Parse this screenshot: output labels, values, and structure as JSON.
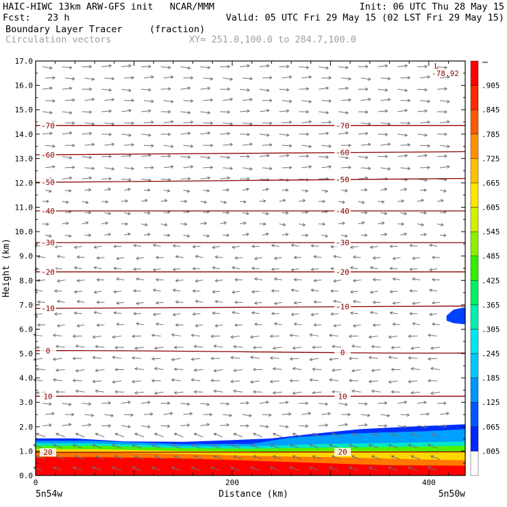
{
  "header": {
    "line1_left": "HAIC-HIWC 13km ARW-GFS init   NCAR/MMM",
    "line1_right": "Init: 06 UTC Thu 28 May 15",
    "line2_left": "Fcst:   23 h",
    "line2_right": "Valid: 05 UTC Fri 29 May 15 (02 LST Fri 29 May 15)",
    "field_name": "Boundary Layer Tracer",
    "field_units": "(fraction)",
    "vector_name": "Circulation vectors",
    "xy_text": "XY= 251.0,100.0 to 284.7,100.0"
  },
  "chart_data": {
    "type": "heatmap",
    "title": "Boundary Layer Tracer",
    "units": "fraction",
    "xlabel": "Distance (km)",
    "ylabel": "Height (km)",
    "xlim": [
      0,
      437
    ],
    "ylim": [
      0,
      17
    ],
    "x_ticks": [
      "0",
      "200",
      "400"
    ],
    "x_tick_values": [
      0,
      200,
      400
    ],
    "x_end_labels": [
      "5n54w",
      "5n50w"
    ],
    "y_ticks": [
      "0.0",
      "1.0",
      "2.0",
      "3.0",
      "4.0",
      "5.0",
      "6.0",
      "7.0",
      "8.0",
      "9.0",
      "10.0",
      "11.0",
      "12.0",
      "13.0",
      "14.0",
      "15.0",
      "16.0",
      "17.0"
    ],
    "y_tick_values": [
      0,
      1,
      2,
      3,
      4,
      5,
      6,
      7,
      8,
      9,
      10,
      11,
      12,
      13,
      14,
      15,
      16,
      17
    ],
    "colorbar": {
      "labels": [
        ".005",
        ".065",
        ".125",
        ".185",
        ".245",
        ".305",
        ".365",
        ".425",
        ".485",
        ".545",
        ".605",
        ".665",
        ".725",
        ".785",
        ".845",
        ".905"
      ],
      "colors": [
        "#ffffff",
        "#0026ff",
        "#0057ff",
        "#0095ff",
        "#00c7ff",
        "#00e6f0",
        "#00f0b0",
        "#00f060",
        "#2ef000",
        "#8cf000",
        "#d4f000",
        "#ffe600",
        "#ffc000",
        "#ff9000",
        "#ff5a00",
        "#ff2a00",
        "#ff0000"
      ]
    },
    "tracer_regions": [
      {
        "name": "bl-red",
        "value": 0.95,
        "color": "#ff0000",
        "x": [
          0,
          60,
          150,
          210,
          260,
          310,
          360,
          437
        ],
        "top": [
          0.75,
          0.75,
          0.7,
          0.62,
          0.55,
          0.48,
          0.42,
          0.4
        ]
      },
      {
        "name": "bl-orange",
        "value": 0.8,
        "color": "#ff7800",
        "x": [
          0,
          60,
          150,
          220,
          300,
          370,
          437
        ],
        "top": [
          0.95,
          0.95,
          0.88,
          0.8,
          0.75,
          0.68,
          0.62
        ]
      },
      {
        "name": "bl-yellow",
        "value": 0.65,
        "color": "#ffd700",
        "x": [
          0,
          60,
          150,
          230,
          300,
          380,
          437
        ],
        "top": [
          1.08,
          1.08,
          1.0,
          0.98,
          1.0,
          1.0,
          0.95
        ]
      },
      {
        "name": "bl-green",
        "value": 0.4,
        "color": "#50f000",
        "x": [
          0,
          60,
          150,
          220,
          300,
          380,
          437
        ],
        "top": [
          1.22,
          1.22,
          1.12,
          1.1,
          1.15,
          1.18,
          1.22
        ]
      },
      {
        "name": "bl-cyan",
        "value": 0.3,
        "color": "#00e6c8",
        "x": [
          0,
          60,
          150,
          220,
          300,
          380,
          437
        ],
        "top": [
          1.32,
          1.32,
          1.2,
          1.2,
          1.3,
          1.35,
          1.4
        ]
      },
      {
        "name": "bl-lightblue",
        "value": 0.2,
        "color": "#00a0ff",
        "x": [
          0,
          60,
          150,
          220,
          260,
          320,
          400,
          437
        ],
        "top": [
          1.42,
          1.42,
          1.28,
          1.3,
          1.55,
          1.72,
          1.82,
          1.9
        ]
      },
      {
        "name": "bl-blue",
        "value": 0.06,
        "color": "#0030ff",
        "x": [
          0,
          40,
          90,
          150,
          200,
          240,
          280,
          330,
          380,
          437
        ],
        "top": [
          1.52,
          1.52,
          1.4,
          1.38,
          1.45,
          1.52,
          1.7,
          1.9,
          2.0,
          2.1
        ]
      },
      {
        "name": "aloft-patch",
        "value": 0.08,
        "color": "#0040ff",
        "x": [
          418,
          425,
          437
        ],
        "top": [
          6.55,
          6.8,
          6.9
        ],
        "bottom": [
          6.35,
          6.25,
          6.2
        ]
      }
    ],
    "contours": {
      "series_name": "Temperature",
      "color": "#8b0000",
      "levels": [
        {
          "label": "20",
          "y": [
            0.95,
            0.97
          ]
        },
        {
          "label": "10",
          "y": [
            3.25,
            3.25
          ]
        },
        {
          "label": "0",
          "y": [
            5.12,
            5.02
          ]
        },
        {
          "label": "-10",
          "y": [
            6.85,
            6.95
          ]
        },
        {
          "label": "-20",
          "y": [
            8.35,
            8.35
          ]
        },
        {
          "label": "-30",
          "y": [
            9.55,
            9.55
          ]
        },
        {
          "label": "-40",
          "y": [
            10.85,
            10.85
          ]
        },
        {
          "label": "-50",
          "y": [
            12.02,
            12.18
          ]
        },
        {
          "label": "-60",
          "y": [
            13.15,
            13.28
          ]
        },
        {
          "label": "-70",
          "y": [
            14.35,
            14.35
          ]
        }
      ],
      "min_label": "L",
      "min_value": "-78.92"
    }
  }
}
